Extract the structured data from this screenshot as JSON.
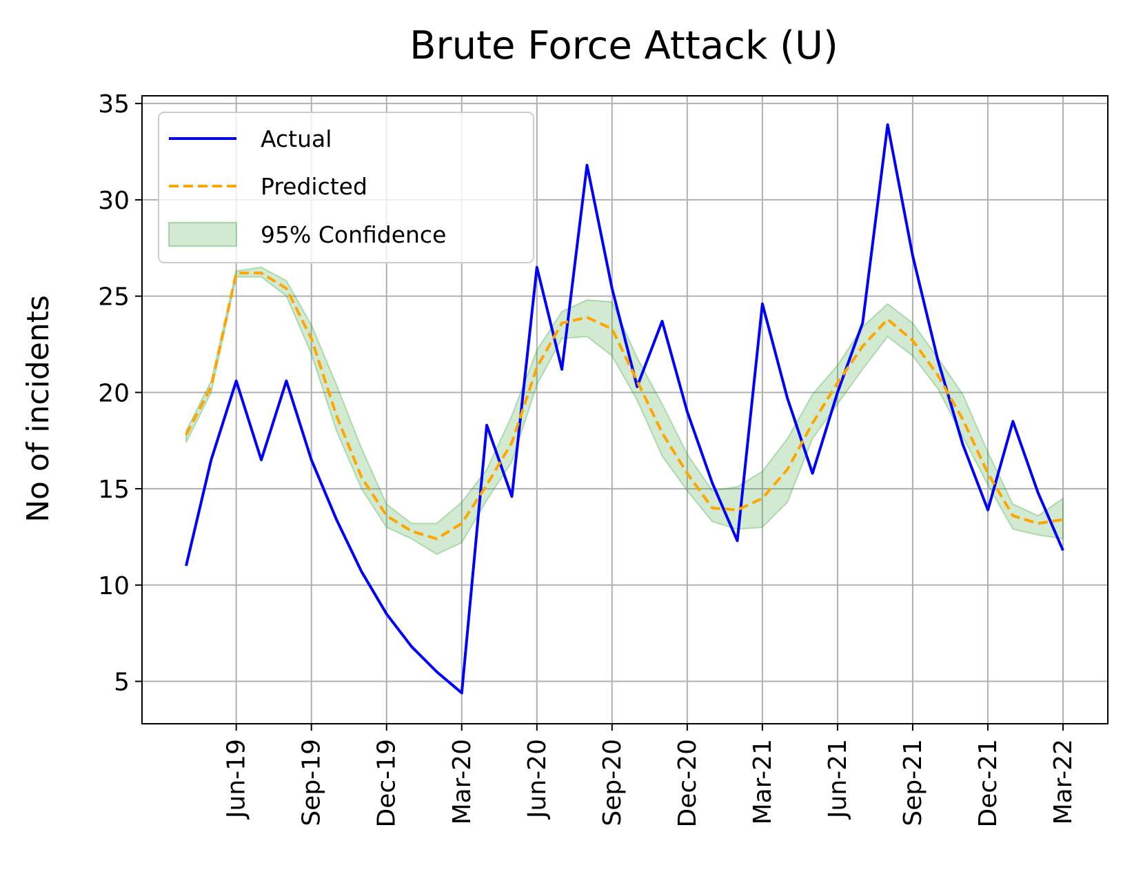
{
  "chart_data": {
    "type": "line",
    "title": "Brute Force Attack (U)",
    "xlabel": "",
    "ylabel": "No of incidents",
    "x": [
      "Apr-19",
      "May-19",
      "Jun-19",
      "Jul-19",
      "Aug-19",
      "Sep-19",
      "Oct-19",
      "Nov-19",
      "Dec-19",
      "Jan-20",
      "Feb-20",
      "Mar-20",
      "Apr-20",
      "May-20",
      "Jun-20",
      "Jul-20",
      "Aug-20",
      "Sep-20",
      "Oct-20",
      "Nov-20",
      "Dec-20",
      "Jan-21",
      "Feb-21",
      "Mar-21",
      "Apr-21",
      "May-21",
      "Jun-21",
      "Jul-21",
      "Aug-21",
      "Sep-21",
      "Oct-21",
      "Nov-21",
      "Dec-21",
      "Jan-22",
      "Feb-22",
      "Mar-22"
    ],
    "x_ticks": [
      "Jun-19",
      "Sep-19",
      "Dec-19",
      "Mar-20",
      "Jun-20",
      "Sep-20",
      "Dec-20",
      "Mar-21",
      "Jun-21",
      "Sep-21",
      "Dec-21",
      "Mar-22"
    ],
    "y_ticks": [
      5,
      10,
      15,
      20,
      25,
      30,
      35
    ],
    "ylim": [
      2.8,
      35.4
    ],
    "grid": true,
    "legend_position": "upper-left",
    "series": [
      {
        "name": "Actual",
        "style": "solid",
        "color": "#0000ff",
        "values": [
          11.0,
          16.5,
          20.6,
          16.5,
          20.6,
          16.5,
          13.4,
          10.7,
          8.5,
          6.8,
          5.5,
          4.4,
          18.3,
          14.6,
          26.5,
          21.2,
          31.8,
          25.4,
          20.3,
          23.7,
          19.0,
          15.3,
          12.3,
          24.6,
          19.7,
          15.8,
          20.0,
          23.6,
          33.9,
          27.1,
          21.7,
          17.3,
          13.9,
          18.5,
          14.8,
          11.8
        ]
      },
      {
        "name": "Predicted",
        "style": "dashed",
        "color": "#ffa500",
        "values": [
          17.8,
          20.3,
          26.2,
          26.2,
          25.4,
          22.8,
          18.8,
          15.6,
          13.6,
          12.8,
          12.4,
          13.2,
          15.2,
          17.4,
          21.3,
          23.6,
          23.9,
          23.3,
          20.6,
          17.9,
          15.8,
          14.0,
          13.9,
          14.5,
          16.0,
          18.4,
          20.5,
          22.4,
          23.8,
          22.7,
          20.9,
          18.6,
          15.8,
          13.6,
          13.2,
          13.4
        ]
      },
      {
        "name": "95% Confidence",
        "type": "band",
        "color": "#2ca02c",
        "lower": [
          17.4,
          20.0,
          26.0,
          26.0,
          25.0,
          22.0,
          18.0,
          15.0,
          13.0,
          12.4,
          11.6,
          12.2,
          14.4,
          16.4,
          20.4,
          22.8,
          22.9,
          21.9,
          19.6,
          16.7,
          14.9,
          13.3,
          12.9,
          13.0,
          14.3,
          17.6,
          19.4,
          21.2,
          22.9,
          21.9,
          20.2,
          17.7,
          15.2,
          12.9,
          12.6,
          12.4
        ],
        "upper": [
          18.0,
          20.6,
          26.3,
          26.5,
          25.8,
          23.5,
          20.4,
          17.1,
          14.2,
          13.2,
          13.2,
          14.3,
          16.0,
          18.8,
          22.2,
          24.2,
          24.8,
          24.7,
          21.8,
          19.4,
          16.8,
          14.9,
          15.1,
          15.9,
          17.6,
          19.9,
          21.4,
          23.4,
          24.6,
          23.6,
          21.8,
          19.9,
          16.9,
          14.2,
          13.6,
          14.5
        ]
      }
    ]
  }
}
